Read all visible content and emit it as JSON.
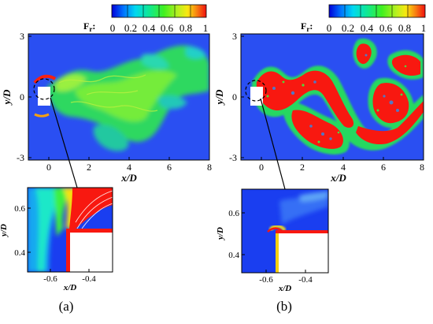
{
  "colors": {
    "low": "#1a3ef0",
    "mid": "#12dd22",
    "high": "#f8250e",
    "background_field": "#2a4ff2"
  },
  "colorbar": {
    "title_main": "F",
    "title_sub": "r",
    "title_colon": ":",
    "ticks": [
      "0",
      "0.2",
      "0.4",
      "0.6",
      "0.8",
      "1"
    ]
  },
  "panel_a": {
    "caption": "(a)",
    "xlabel": "x/D",
    "ylabel": "y/D",
    "x_ticks": [
      "0",
      "2",
      "4",
      "6",
      "8"
    ],
    "y_ticks": [
      "3",
      "0",
      "-3"
    ],
    "zoom": {
      "x_ticks": [
        "-0.6",
        "-0.4"
      ],
      "y_ticks": [
        "0.6",
        "0.4"
      ],
      "xlabel": "x/D",
      "ylabel": "y/D"
    }
  },
  "panel_b": {
    "caption": "(b)",
    "xlabel": "x/D",
    "ylabel": "y/D",
    "x_ticks": [
      "0",
      "2",
      "4",
      "6",
      "8"
    ],
    "y_ticks": [
      "3",
      "0",
      "-3"
    ],
    "zoom": {
      "x_ticks": [
        "-0.6",
        "-0.4"
      ],
      "y_ticks": [
        "0.6",
        "0.4"
      ],
      "xlabel": "x/D",
      "ylabel": "y/D"
    }
  }
}
